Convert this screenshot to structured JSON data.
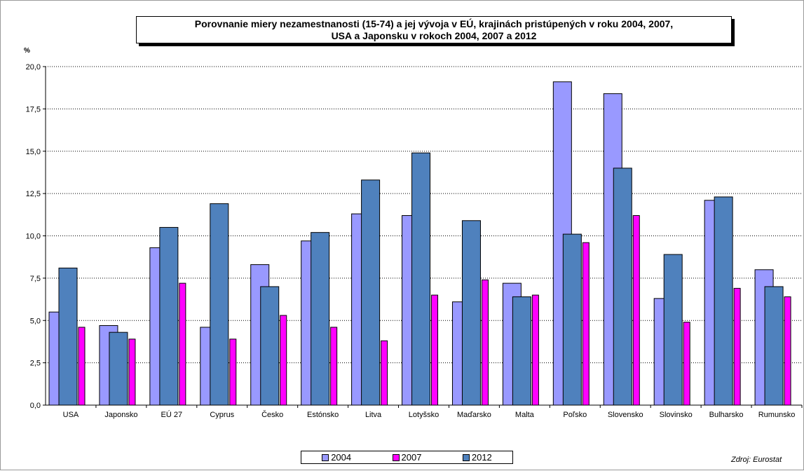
{
  "title_lines": [
    "Porovnanie miery nezamestnanosti (15-74)  a jej vývoja v EÚ, krajinách pristúpených  v roku 2004, 2007,",
    "USA a Japonsku  v rokoch 2004, 2007  a 2012"
  ],
  "y_unit": "%",
  "source": "Zdroj: Eurostat",
  "colors": {
    "s2004": "#9999ff",
    "s2007": "#ff00ff",
    "s2012": "#4f81bd",
    "grid": "#000000"
  },
  "chart_data": {
    "type": "bar",
    "title": "Porovnanie miery nezamestnanosti (15-74)  a jej vývoja v EÚ, krajinách pristúpených  v roku 2004, 2007, USA a Japonsku  v rokoch 2004, 2007  a 2012",
    "ylabel": "%",
    "xlabel": "",
    "ylim": [
      0,
      20
    ],
    "y_ticks": [
      "0,0",
      "2,5",
      "5,0",
      "7,5",
      "10,0",
      "12,5",
      "15,0",
      "17,5",
      "20,0"
    ],
    "grid": true,
    "legend_position": "bottom",
    "categories": [
      "USA",
      "Japonsko",
      "EÚ 27",
      "Cyprus",
      "Česko",
      "Estónsko",
      "Litva",
      "Lotyšsko",
      "Maďarsko",
      "Malta",
      "Poľsko",
      "Slovensko",
      "Slovinsko",
      "Bulharsko",
      "Rumunsko"
    ],
    "series": [
      {
        "name": "2004",
        "values": [
          5.5,
          4.7,
          9.3,
          4.6,
          8.3,
          9.7,
          11.3,
          11.2,
          6.1,
          7.2,
          19.1,
          18.4,
          6.3,
          12.1,
          8.0
        ]
      },
      {
        "name": "2012",
        "values": [
          8.1,
          4.3,
          10.5,
          11.9,
          7.0,
          10.2,
          13.3,
          14.9,
          10.9,
          6.4,
          10.1,
          14.0,
          8.9,
          12.3,
          7.0
        ]
      },
      {
        "name": "2007",
        "values": [
          4.6,
          3.9,
          7.2,
          3.9,
          5.3,
          4.6,
          3.8,
          6.5,
          7.4,
          6.5,
          9.6,
          11.2,
          4.9,
          6.9,
          6.4
        ]
      }
    ],
    "legend_order": [
      "2004",
      "2007",
      "2012"
    ]
  }
}
